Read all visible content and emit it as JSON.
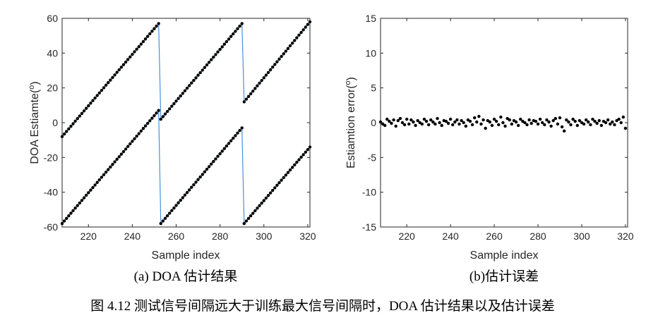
{
  "figure_caption": "图 4.12 测试信号间隔远大于训练最大信号间隔时，DOA 估计结果以及估计误差",
  "colors": {
    "line": "#4a90d9",
    "marker": "#000000",
    "axis": "#262626"
  },
  "chart_data": [
    {
      "type": "line",
      "caption": "(a) DOA 估计结果",
      "xlabel": "Sample index",
      "ylabel": "DOA Estiamte(",
      "ylabel_sup": "o",
      "ylabel_close": ")",
      "xlim": [
        208,
        321
      ],
      "ylim": [
        -60,
        60
      ],
      "xticks": [
        220,
        240,
        260,
        280,
        300,
        320
      ],
      "yticks": [
        -60,
        -40,
        -20,
        0,
        20,
        40,
        60
      ],
      "xtick_labels": [
        "220",
        "240",
        "260",
        "280",
        "300",
        "320"
      ],
      "ytick_labels": [
        "-60",
        "-40",
        "-20",
        "0",
        "20",
        "40",
        "60"
      ],
      "series": [
        {
          "segments": [
            {
              "x": [
                208,
                252
              ],
              "y": [
                -8,
                57
              ]
            },
            {
              "x": [
                253,
                290
              ],
              "y": [
                2,
                57
              ]
            },
            {
              "x": [
                291,
                321
              ],
              "y": [
                12,
                58
              ]
            }
          ]
        },
        {
          "segments": [
            {
              "x": [
                208,
                252
              ],
              "y": [
                -58,
                7
              ]
            },
            {
              "x": [
                253,
                290
              ],
              "y": [
                -58,
                -3
              ]
            },
            {
              "x": [
                291,
                321
              ],
              "y": [
                -58,
                -14
              ]
            }
          ]
        }
      ]
    },
    {
      "type": "scatter",
      "caption": "(b)估计误差",
      "xlabel": "Sample index",
      "ylabel": "Estiamtion error(",
      "ylabel_sup": "o",
      "ylabel_close": ")",
      "xlim": [
        208,
        321
      ],
      "ylim": [
        -15,
        15
      ],
      "xticks": [
        220,
        240,
        260,
        280,
        300,
        320
      ],
      "yticks": [
        -15,
        -10,
        -5,
        0,
        5,
        10,
        15
      ],
      "xtick_labels": [
        "220",
        "240",
        "260",
        "280",
        "300",
        "320"
      ],
      "ytick_labels": [
        "-15",
        "-10",
        "-5",
        "0",
        "5",
        "10",
        "15"
      ],
      "x": [
        208,
        209,
        210,
        211,
        212,
        213,
        214,
        215,
        216,
        217,
        218,
        219,
        220,
        221,
        222,
        223,
        224,
        225,
        226,
        227,
        228,
        229,
        230,
        231,
        232,
        233,
        234,
        235,
        236,
        237,
        238,
        239,
        240,
        241,
        242,
        243,
        244,
        245,
        246,
        247,
        248,
        249,
        250,
        251,
        252,
        253,
        254,
        255,
        256,
        257,
        258,
        259,
        260,
        261,
        262,
        263,
        264,
        265,
        266,
        267,
        268,
        269,
        270,
        271,
        272,
        273,
        274,
        275,
        276,
        277,
        278,
        279,
        280,
        281,
        282,
        283,
        284,
        285,
        286,
        287,
        288,
        289,
        290,
        291,
        292,
        293,
        294,
        295,
        296,
        297,
        298,
        299,
        300,
        301,
        302,
        303,
        304,
        305,
        306,
        307,
        308,
        309,
        310,
        311,
        312,
        313,
        314,
        315,
        316,
        317,
        318,
        319,
        320
      ],
      "y": [
        0.1,
        -0.2,
        -0.4,
        0.5,
        0.2,
        -0.1,
        0.4,
        -0.5,
        0.3,
        0.6,
        0.0,
        -0.3,
        0.5,
        -0.2,
        0.4,
        0.1,
        -0.4,
        0.3,
        0.0,
        -0.2,
        0.5,
        0.2,
        -0.3,
        0.4,
        0.1,
        -0.2,
        0.6,
        0.0,
        -0.4,
        0.3,
        0.2,
        -0.1,
        0.5,
        -0.3,
        0.1,
        0.4,
        -0.2,
        0.3,
        0.0,
        -0.5,
        0.4,
        0.2,
        -0.3,
        0.7,
        0.1,
        0.9,
        -0.2,
        0.4,
        -0.8,
        0.3,
        0.1,
        -0.4,
        0.5,
        0.2,
        -0.3,
        0.8,
        0.0,
        -0.5,
        0.6,
        0.4,
        -0.2,
        0.3,
        0.1,
        -0.4,
        0.5,
        0.2,
        0.0,
        -0.3,
        0.4,
        -0.1,
        0.3,
        0.2,
        -0.2,
        0.5,
        0.0,
        -0.3,
        0.4,
        0.1,
        -0.5,
        0.3,
        0.6,
        -0.2,
        0.7,
        -0.6,
        -1.2,
        0.4,
        0.1,
        -0.3,
        0.5,
        0.2,
        -0.4,
        0.3,
        0.0,
        -0.2,
        0.4,
        0.1,
        -0.3,
        0.5,
        0.2,
        -0.1,
        0.3,
        -0.4,
        0.2,
        0.0,
        0.4,
        -0.2,
        0.1,
        -0.3,
        0.3,
        0.5,
        0.0,
        0.8,
        -0.8
      ]
    }
  ]
}
